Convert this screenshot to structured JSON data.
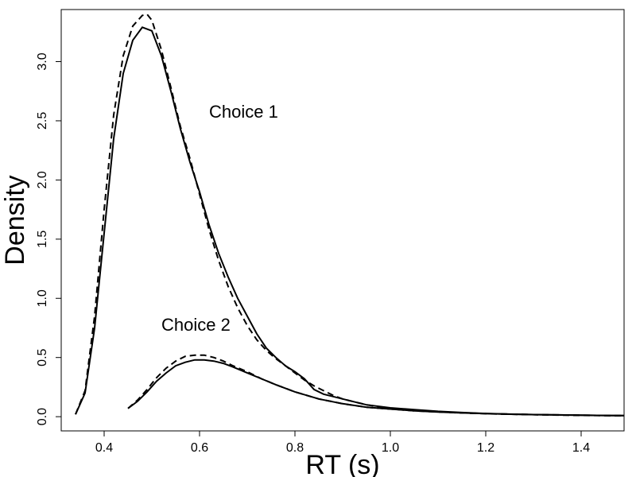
{
  "chart_data": {
    "type": "line",
    "title": "",
    "xlabel": "RT (s)",
    "ylabel": "Density",
    "xlim": [
      0.31,
      1.49
    ],
    "ylim": [
      -0.12,
      3.44
    ],
    "xticks": [
      0.4,
      0.6,
      0.8,
      1.0,
      1.2,
      1.4
    ],
    "xtick_labels": [
      "0.4",
      "0.6",
      "0.8",
      "1.0",
      "1.2",
      "1.4"
    ],
    "yticks": [
      0.0,
      0.5,
      1.0,
      1.5,
      2.0,
      2.5,
      3.0
    ],
    "ytick_labels": [
      "0.0",
      "0.5",
      "1.0",
      "1.5",
      "2.0",
      "2.5",
      "3.0"
    ],
    "grid": false,
    "legend": "none",
    "annotations": [
      {
        "text": "Choice 1",
        "x": 0.62,
        "y": 2.58
      },
      {
        "text": "Choice 2",
        "x": 0.52,
        "y": 0.78
      }
    ],
    "series": [
      {
        "line_style": "solid",
        "x": [
          0.34,
          0.36,
          0.38,
          0.4,
          0.42,
          0.44,
          0.46,
          0.48,
          0.5,
          0.52,
          0.54,
          0.56,
          0.58,
          0.6,
          0.62,
          0.64,
          0.66,
          0.68,
          0.7,
          0.72,
          0.74,
          0.76,
          0.78,
          0.8,
          0.82,
          0.84,
          0.86,
          0.88,
          0.9,
          0.92,
          0.95,
          1.0,
          1.05,
          1.1,
          1.15,
          1.2,
          1.25,
          1.3,
          1.35,
          1.4,
          1.45,
          1.49
        ],
        "y": [
          0.02,
          0.2,
          0.75,
          1.55,
          2.35,
          2.9,
          3.18,
          3.29,
          3.26,
          3.05,
          2.75,
          2.43,
          2.15,
          1.9,
          1.62,
          1.38,
          1.18,
          1.0,
          0.85,
          0.7,
          0.58,
          0.5,
          0.43,
          0.38,
          0.32,
          0.23,
          0.19,
          0.17,
          0.15,
          0.13,
          0.1,
          0.075,
          0.06,
          0.045,
          0.035,
          0.027,
          0.022,
          0.018,
          0.015,
          0.012,
          0.01,
          0.009
        ]
      },
      {
        "line_style": "dashed",
        "x": [
          0.34,
          0.36,
          0.38,
          0.4,
          0.42,
          0.44,
          0.46,
          0.48,
          0.49,
          0.5,
          0.52,
          0.54,
          0.56,
          0.58,
          0.6,
          0.62,
          0.64,
          0.66,
          0.68,
          0.7,
          0.72,
          0.74,
          0.76,
          0.78,
          0.8,
          0.82,
          0.84,
          0.86,
          0.88,
          0.9,
          0.92,
          0.95,
          1.0,
          1.05,
          1.1,
          1.15,
          1.2,
          1.25,
          1.3,
          1.35,
          1.4,
          1.45,
          1.49
        ],
        "y": [
          0.02,
          0.22,
          0.85,
          1.75,
          2.55,
          3.05,
          3.3,
          3.39,
          3.4,
          3.35,
          3.1,
          2.78,
          2.45,
          2.18,
          1.88,
          1.58,
          1.32,
          1.1,
          0.92,
          0.77,
          0.65,
          0.56,
          0.49,
          0.43,
          0.37,
          0.31,
          0.26,
          0.22,
          0.18,
          0.15,
          0.13,
          0.1,
          0.07,
          0.055,
          0.042,
          0.033,
          0.026,
          0.021,
          0.017,
          0.014,
          0.011,
          0.009,
          0.008
        ]
      },
      {
        "line_style": "solid",
        "x": [
          0.45,
          0.47,
          0.49,
          0.51,
          0.53,
          0.55,
          0.57,
          0.59,
          0.61,
          0.63,
          0.65,
          0.67,
          0.7,
          0.73,
          0.76,
          0.8,
          0.85,
          0.9,
          0.95,
          1.0,
          1.05,
          1.1,
          1.15,
          1.2,
          1.25,
          1.3,
          1.35,
          1.4,
          1.45,
          1.49
        ],
        "y": [
          0.07,
          0.13,
          0.21,
          0.3,
          0.37,
          0.43,
          0.46,
          0.48,
          0.48,
          0.47,
          0.45,
          0.42,
          0.37,
          0.32,
          0.27,
          0.21,
          0.15,
          0.11,
          0.08,
          0.065,
          0.05,
          0.04,
          0.032,
          0.026,
          0.021,
          0.018,
          0.015,
          0.012,
          0.01,
          0.009
        ]
      },
      {
        "line_style": "dashed",
        "x": [
          0.45,
          0.47,
          0.49,
          0.51,
          0.53,
          0.55,
          0.57,
          0.59,
          0.61,
          0.63,
          0.65,
          0.67,
          0.7,
          0.73,
          0.76,
          0.8,
          0.85,
          0.9,
          0.95,
          1.0,
          1.05,
          1.1,
          1.15,
          1.2,
          1.25,
          1.3,
          1.35,
          1.4,
          1.45,
          1.49
        ],
        "y": [
          0.07,
          0.14,
          0.23,
          0.33,
          0.41,
          0.47,
          0.51,
          0.52,
          0.52,
          0.5,
          0.47,
          0.43,
          0.38,
          0.32,
          0.27,
          0.21,
          0.15,
          0.11,
          0.08,
          0.065,
          0.05,
          0.04,
          0.032,
          0.026,
          0.021,
          0.018,
          0.015,
          0.012,
          0.01,
          0.009
        ]
      }
    ]
  }
}
